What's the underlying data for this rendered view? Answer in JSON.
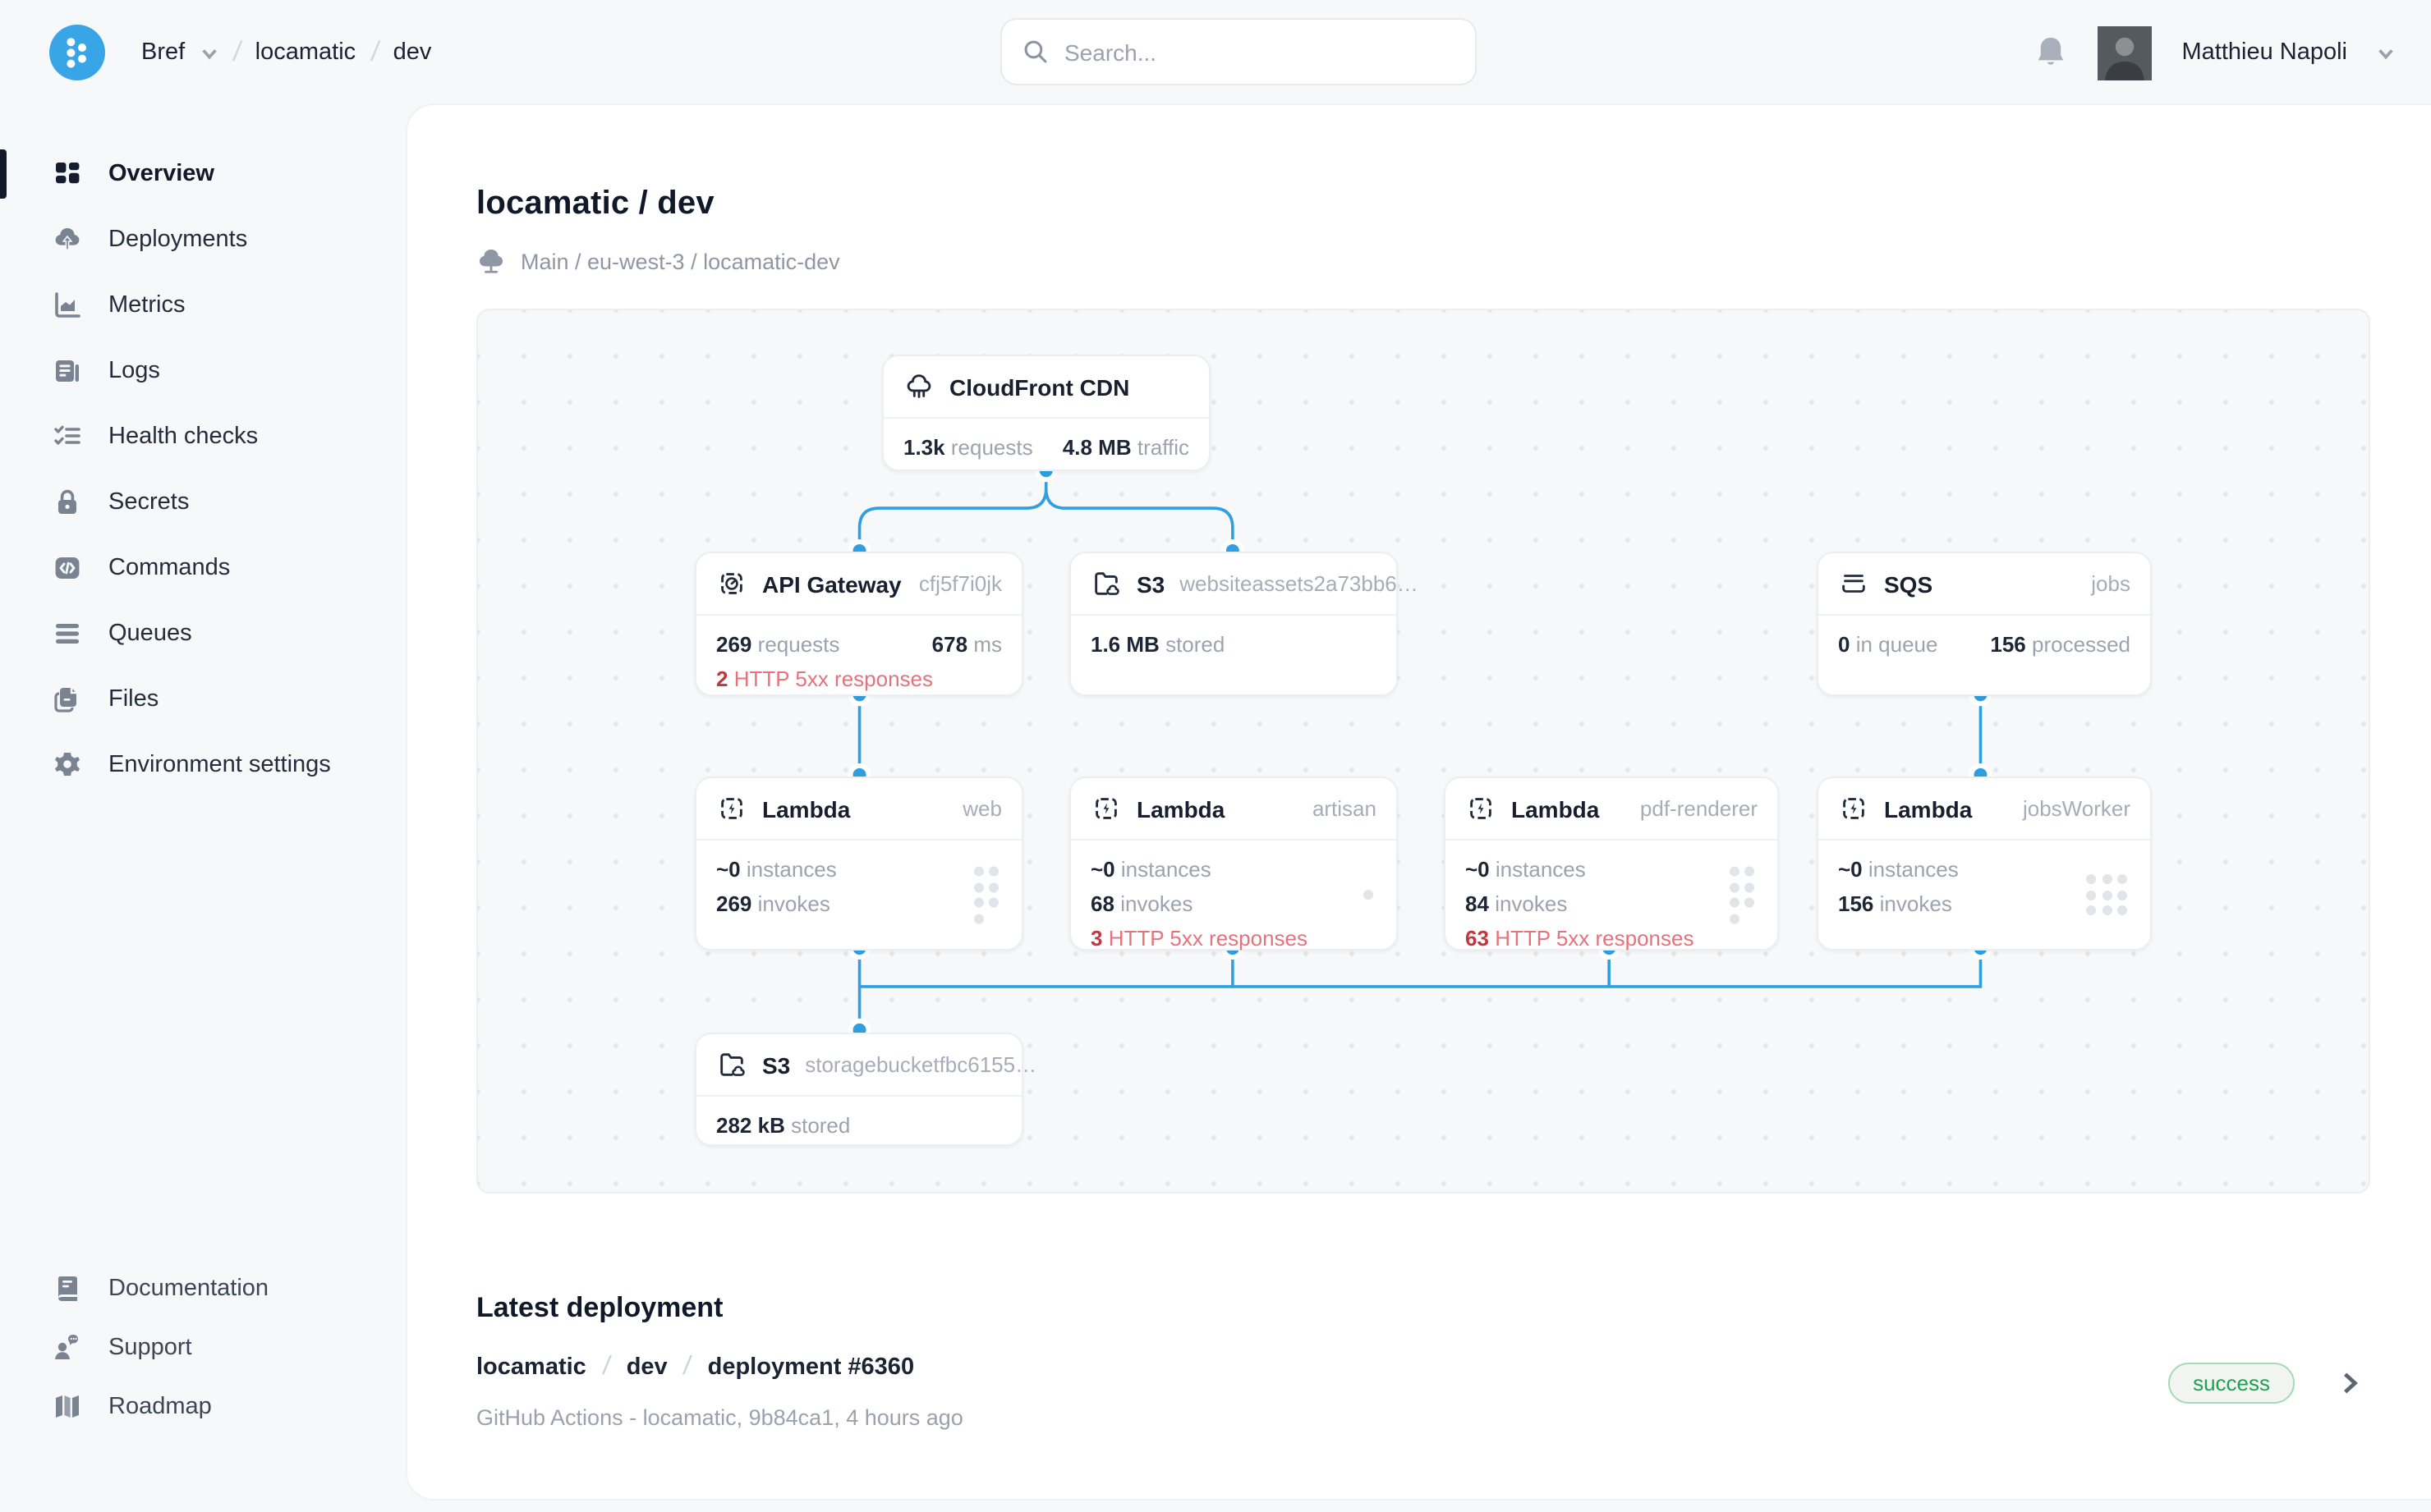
{
  "colors": {
    "accent": "#2f9fe2",
    "brand_blue": "#38a6e6",
    "alert_red": "#c23640",
    "alert_red_light": "#e4737b",
    "success_green": "#1ea24f",
    "success_border": "#a4dab6"
  },
  "topbar": {
    "breadcrumb": {
      "org": "Bref",
      "separator": "/",
      "project": "locamatic",
      "env": "dev"
    },
    "search": {
      "placeholder": "Search..."
    },
    "user": {
      "name": "Matthieu Napoli"
    }
  },
  "sidebar": {
    "items": [
      {
        "label": "Overview",
        "icon": "grid-icon",
        "active": true
      },
      {
        "label": "Deployments",
        "icon": "cloud-upload-icon",
        "active": false
      },
      {
        "label": "Metrics",
        "icon": "chart-icon",
        "active": false
      },
      {
        "label": "Logs",
        "icon": "document-icon",
        "active": false
      },
      {
        "label": "Health checks",
        "icon": "checklist-icon",
        "active": false
      },
      {
        "label": "Secrets",
        "icon": "lock-icon",
        "active": false
      },
      {
        "label": "Commands",
        "icon": "code-icon",
        "active": false
      },
      {
        "label": "Queues",
        "icon": "queue-icon",
        "active": false
      },
      {
        "label": "Files",
        "icon": "files-icon",
        "active": false
      },
      {
        "label": "Environment settings",
        "icon": "gear-icon",
        "active": false
      }
    ],
    "footer_items": [
      {
        "label": "Documentation",
        "icon": "book-icon"
      },
      {
        "label": "Support",
        "icon": "support-icon"
      },
      {
        "label": "Roadmap",
        "icon": "map-icon"
      }
    ]
  },
  "page": {
    "title": "locamatic / dev",
    "environment_path": "Main / eu-west-3 / locamatic-dev"
  },
  "diagram": {
    "nodes": {
      "cloudfront": {
        "title": "CloudFront CDN",
        "stats": [
          {
            "value": "1.3k",
            "label": "requests"
          },
          {
            "value": "4.8 MB",
            "label": "traffic"
          }
        ]
      },
      "api_gateway": {
        "title": "API Gateway",
        "meta": "cfj5f7i0jk",
        "stats": [
          {
            "value": "269",
            "label": "requests"
          },
          {
            "value": "678",
            "label": "ms"
          }
        ],
        "alert": {
          "value": "2",
          "label": "HTTP 5xx responses"
        }
      },
      "s3_website": {
        "title": "S3",
        "meta": "websiteassets2a73bb6…",
        "stats": [
          {
            "value": "1.6 MB",
            "label": "stored"
          }
        ]
      },
      "sqs": {
        "title": "SQS",
        "meta": "jobs",
        "stats": [
          {
            "value": "0",
            "label": "in queue"
          },
          {
            "value": "156",
            "label": "processed"
          }
        ]
      },
      "lambda_web": {
        "title": "Lambda",
        "meta": "web",
        "stats": [
          {
            "value": "~0",
            "label": "instances"
          },
          {
            "value": "269",
            "label": "invokes"
          }
        ],
        "activity_dots": 7
      },
      "lambda_artisan": {
        "title": "Lambda",
        "meta": "artisan",
        "stats": [
          {
            "value": "~0",
            "label": "instances"
          },
          {
            "value": "68",
            "label": "invokes"
          }
        ],
        "alert": {
          "value": "3",
          "label": "HTTP 5xx responses"
        },
        "activity_dots": 1
      },
      "lambda_pdf_renderer": {
        "title": "Lambda",
        "meta": "pdf-renderer",
        "stats": [
          {
            "value": "~0",
            "label": "instances"
          },
          {
            "value": "84",
            "label": "invokes"
          }
        ],
        "alert": {
          "value": "63",
          "label": "HTTP 5xx responses"
        },
        "activity_dots": 7
      },
      "lambda_jobsworker": {
        "title": "Lambda",
        "meta": "jobsWorker",
        "stats": [
          {
            "value": "~0",
            "label": "instances"
          },
          {
            "value": "156",
            "label": "invokes"
          }
        ],
        "activity_dots": 9
      },
      "s3_storage": {
        "title": "S3",
        "meta": "storagebucketfbc6155…",
        "stats": [
          {
            "value": "282 kB",
            "label": "stored"
          }
        ]
      }
    }
  },
  "latest_deployment": {
    "heading": "Latest deployment",
    "breadcrumb": {
      "project": "locamatic",
      "separator": "/",
      "env": "dev",
      "name": "deployment #6360"
    },
    "meta": "GitHub Actions - locamatic,  9b84ca1,  4 hours ago",
    "status": "success"
  }
}
